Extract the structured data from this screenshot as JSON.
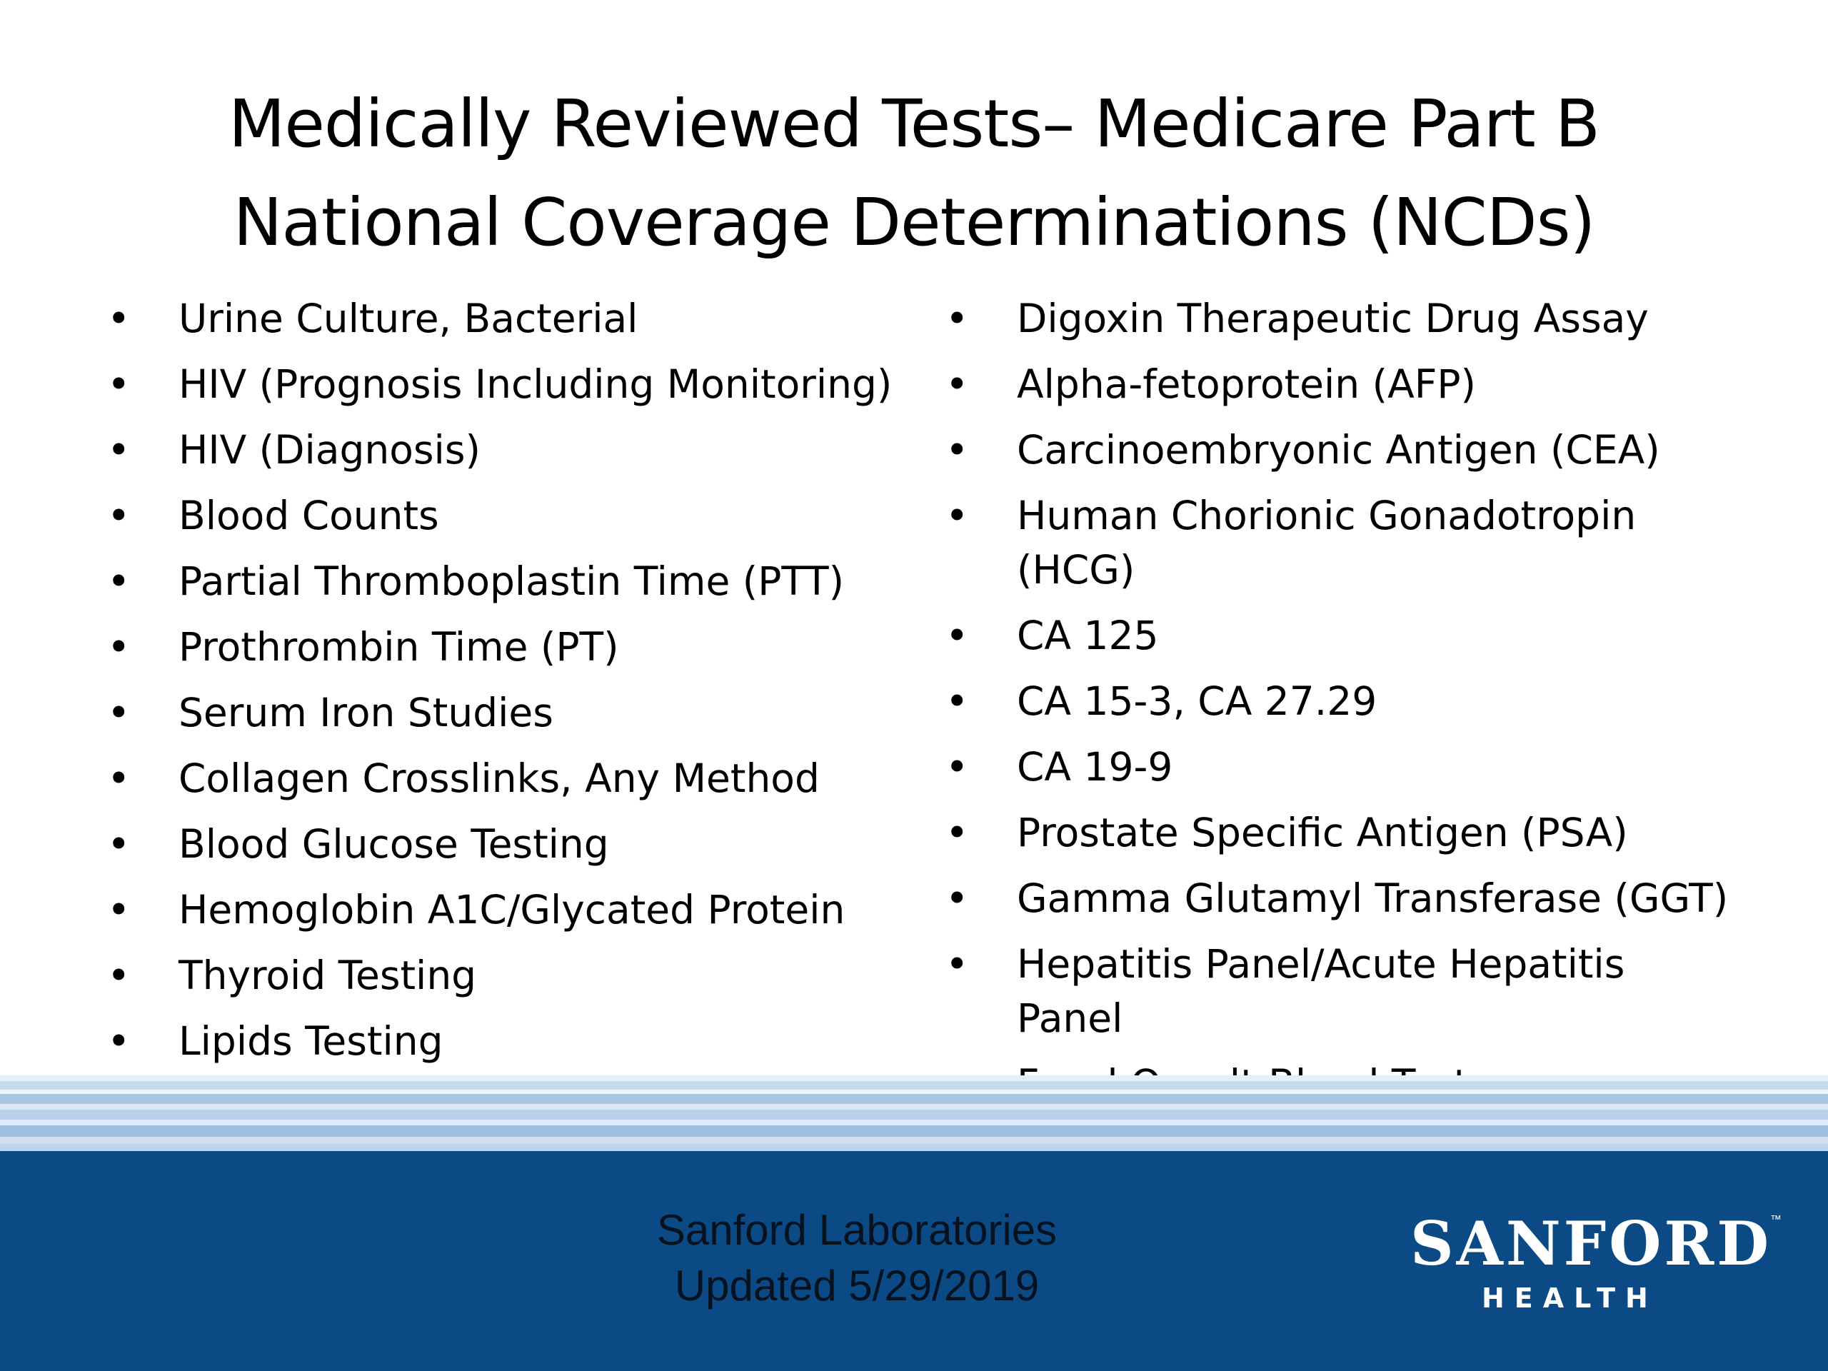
{
  "title": {
    "line1": "Medically Reviewed Tests– Medicare Part B",
    "line2": "National Coverage Determinations (NCDs)"
  },
  "bullet_glyph": "•",
  "left_column": [
    "Urine Culture, Bacterial",
    "HIV  (Prognosis Including Monitoring)",
    "HIV  (Diagnosis)",
    "Blood Counts",
    "Partial Thromboplastin Time (PTT)",
    "Prothrombin Time (PT)",
    "Serum Iron Studies",
    "Collagen Crosslinks, Any Method",
    "Blood Glucose Testing",
    "Hemoglobin A1C/Glycated Protein",
    "Thyroid Testing",
    "Lipids Testing"
  ],
  "right_column": [
    "Digoxin Therapeutic Drug Assay",
    "Alpha-fetoprotein (AFP)",
    "Carcinoembryonic Antigen (CEA)",
    "Human Chorionic Gonadotropin (HCG)",
    "CA 125",
    "CA 15-3, CA 27.29",
    "CA 19-9",
    "Prostate Specific Antigen (PSA)",
    "Gamma Glutamyl Transferase (GGT)",
    "Hepatitis Panel/Acute Hepatitis Panel",
    "Fecal Occult Blood Test"
  ],
  "footer": {
    "line1": "Sanford Laboratories",
    "line2": "Updated 5/29/2019"
  },
  "logo": {
    "word": "SANFORD",
    "trademark": "™",
    "sub": "HEALTH"
  },
  "colors": {
    "footer_background": "#0b4a84",
    "footer_text": "#06121f",
    "logo_text": "#ffffff"
  }
}
